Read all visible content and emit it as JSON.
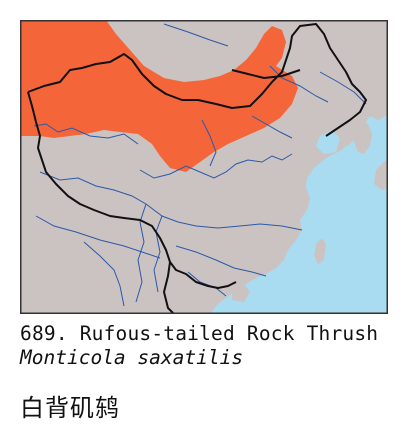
{
  "map": {
    "colors": {
      "sea": "#a9dcf0",
      "land": "#cbc3c1",
      "range": "#f4663a",
      "rivers": "#2c58a8",
      "borders": "#111111",
      "frame": "#333333"
    },
    "icons": {
      "range": "species-range-area",
      "rivers": "river-lines",
      "borders": "national-border-lines"
    }
  },
  "caption": {
    "number": "689.",
    "english_name": "Rufous-tailed Rock Thrush",
    "latin_name": "Monticola saxatilis",
    "chinese_name": "白背矶鸫"
  }
}
